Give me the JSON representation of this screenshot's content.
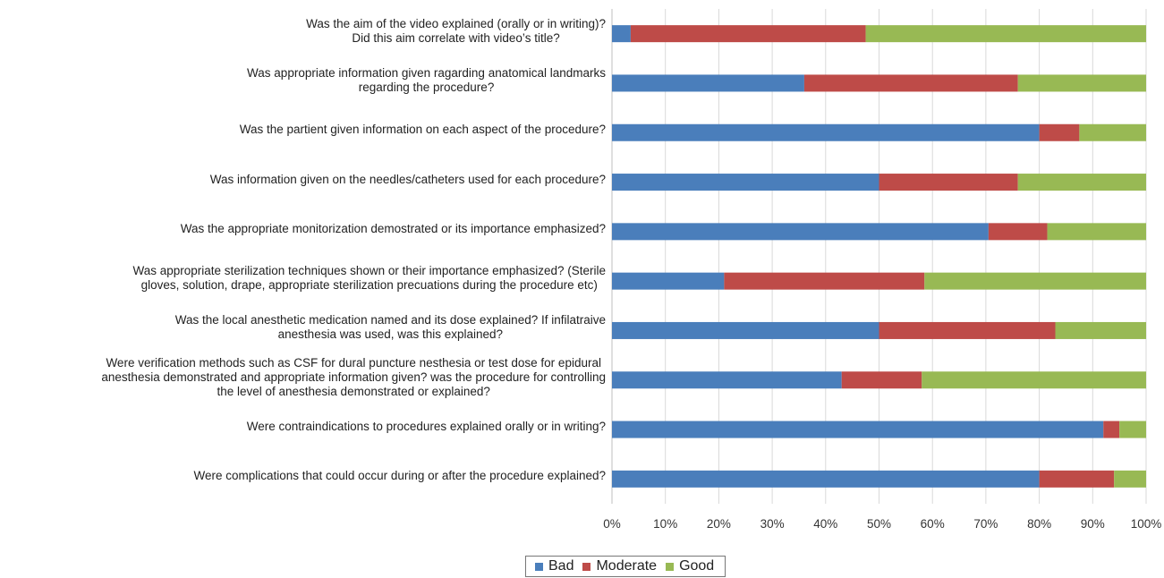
{
  "chart_data": {
    "type": "bar",
    "orientation": "horizontal",
    "stacked": true,
    "percent": true,
    "categories": [
      [
        "Was the aim of the video explained (orally or in writing)?",
        "Did this aim correlate with video’s title?"
      ],
      [
        "Was appropriate information given ragarding anatomical landmarks",
        "regarding the procedure?"
      ],
      [
        "Was the partient given information on each aspect of the procedure?"
      ],
      [
        "Was information given on the needles/catheters used for each procedure?"
      ],
      [
        "Was the appropriate monitorization demostrated or its importance emphasized?"
      ],
      [
        "Was appropriate sterilization techniques shown or their importance emphasized? (Sterile",
        "gloves, solution, drape, appropriate sterilization precuations during the procedure etc)"
      ],
      [
        "Was the local anesthetic medication named and its dose explained? If infilatraive",
        "anesthesia was used, was this explained?"
      ],
      [
        "Were verification methods such as CSF for dural puncture nesthesia or test dose for epidural",
        "anesthesia demonstrated and appropriate information given? was the procedure for controlling",
        "the level of anesthesia demonstrated or explained?"
      ],
      [
        "Were contraindications to procedures explained  orally or in writing?"
      ],
      [
        "Were complications that could occur during or after the procedure explained?"
      ]
    ],
    "series": [
      {
        "name": "Bad",
        "color": "#4A7EBB",
        "values": [
          3.5,
          36,
          80,
          50,
          70.5,
          21,
          50,
          43,
          92,
          80
        ]
      },
      {
        "name": "Moderate",
        "color": "#BE4B48",
        "values": [
          44,
          40,
          7.5,
          26,
          11,
          37.5,
          33,
          15,
          3,
          14
        ]
      },
      {
        "name": "Good",
        "color": "#98B954",
        "values": [
          52.5,
          24,
          12.5,
          24,
          18.5,
          41.5,
          17,
          42,
          5,
          6
        ]
      }
    ],
    "xlim": [
      0,
      100
    ],
    "xticks": [
      "0%",
      "10%",
      "20%",
      "30%",
      "40%",
      "50%",
      "60%",
      "70%",
      "80%",
      "90%",
      "100%"
    ],
    "grid": true,
    "legend_position": "bottom"
  }
}
